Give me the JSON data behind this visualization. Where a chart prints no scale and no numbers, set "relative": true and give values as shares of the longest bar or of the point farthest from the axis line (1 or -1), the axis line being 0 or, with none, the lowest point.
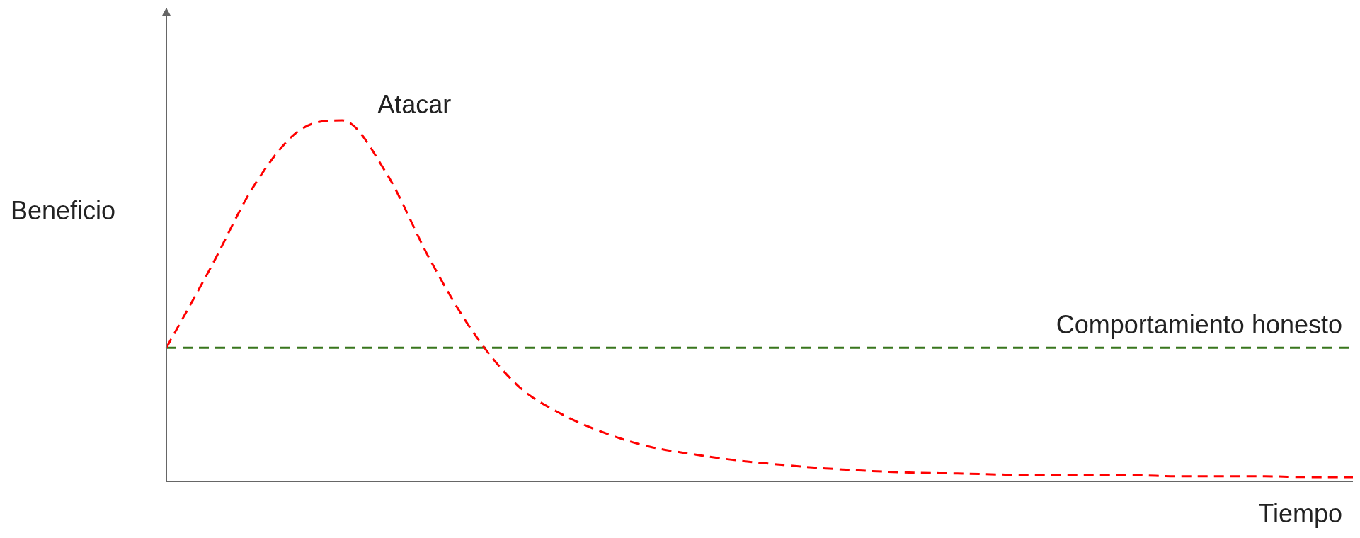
{
  "chart_data": {
    "type": "line",
    "relative": true,
    "xlabel": "Tiempo",
    "ylabel": "Beneficio",
    "legend": false,
    "marker": "none",
    "categories": [
      null,
      null,
      null,
      null,
      null,
      null,
      null,
      null,
      null,
      null,
      null,
      null,
      null,
      null,
      null,
      null,
      null,
      null,
      null,
      null,
      null,
      null,
      null,
      null,
      null,
      null,
      null,
      null
    ],
    "series": [
      {
        "name": "Atacar",
        "color": "#ff0000",
        "line_style": "dashed",
        "values": [
          0.37,
          0.59,
          0.82,
          0.97,
          1,
          0.855,
          0.614,
          0.41,
          0.265,
          0.186,
          0.133,
          0.096,
          0.075,
          0.058,
          0.046,
          0.036,
          0.029,
          0.024,
          0.022,
          0.019,
          0.017,
          0.017,
          0.017,
          0.014,
          0.014,
          0.014,
          0.012,
          0.012
        ]
      },
      {
        "name": "Comportamiento honesto",
        "color": "#38761d",
        "line_style": "dashed",
        "values": [
          0.37,
          0.37,
          0.37,
          0.37,
          0.37,
          0.37,
          0.37,
          0.37,
          0.37,
          0.37,
          0.37,
          0.37,
          0.37,
          0.37,
          0.37,
          0.37,
          0.37,
          0.37,
          0.37,
          0.37,
          0.37,
          0.37,
          0.37,
          0.37,
          0.37,
          0.37,
          0.37,
          0.37
        ]
      }
    ]
  }
}
